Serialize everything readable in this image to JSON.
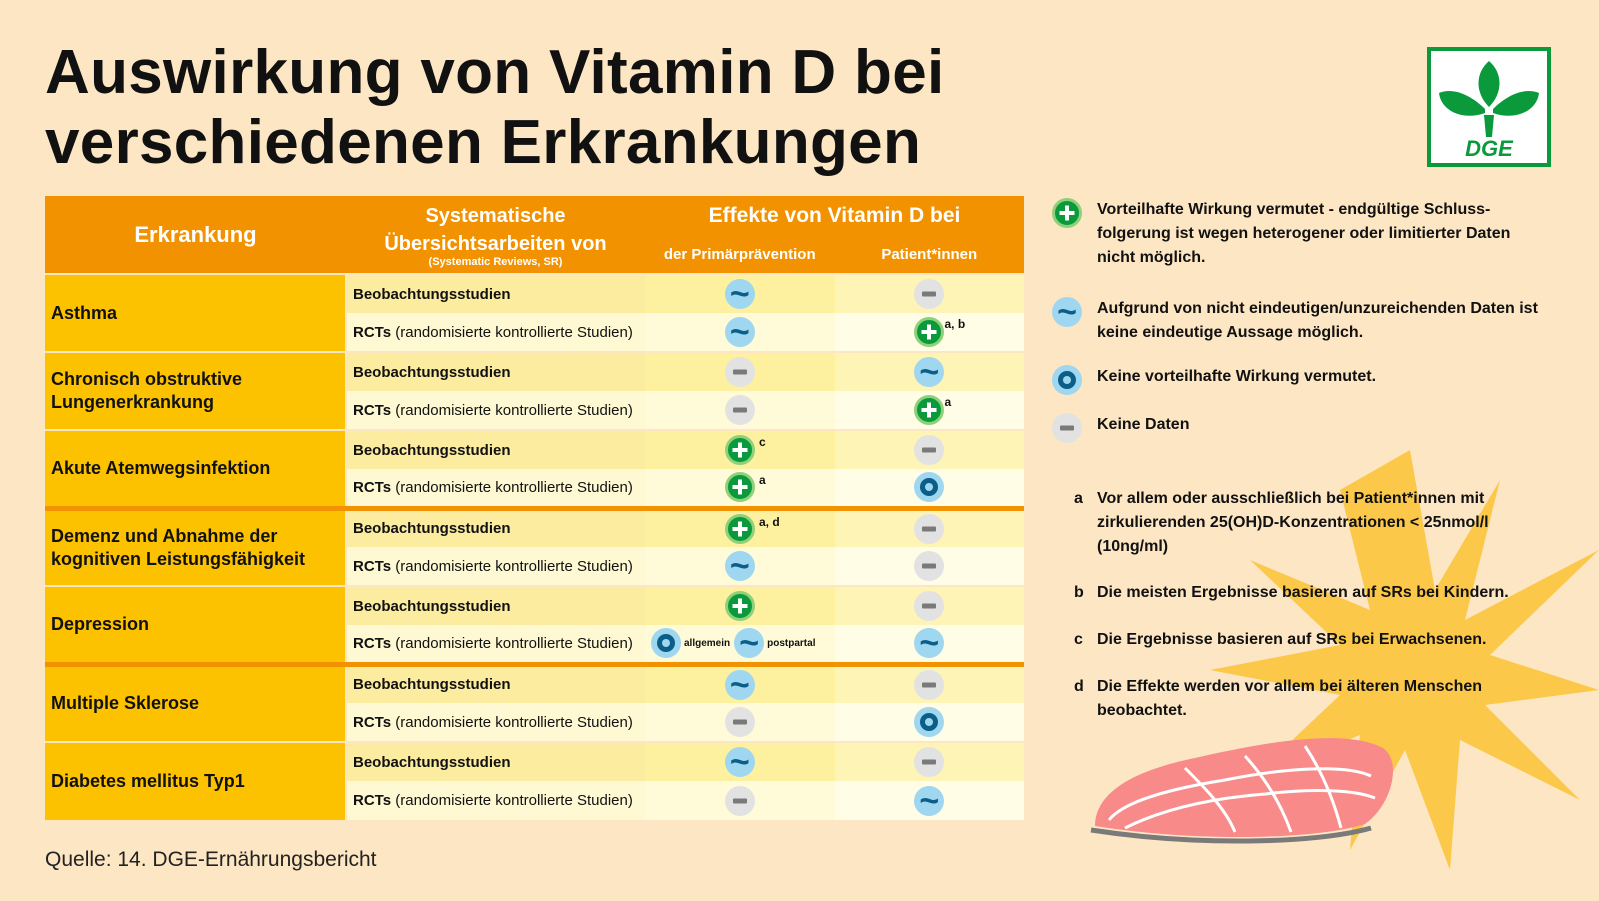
{
  "title_line1": "Auswirkung von Vitamin D bei",
  "title_line2": "verschiedenen Erkrankungen",
  "logo_text": "DGE",
  "colors": {
    "header": "#f39200",
    "disease": "#fcc200",
    "green": "#0a9a3c",
    "blue": "#9fd6f0",
    "background": "#fde6c3"
  },
  "table": {
    "h_erkrankung": "Erkrankung",
    "h_sys": "Systematische",
    "h_sys2": "Übersichtsarbeiten von",
    "h_sys_small": "(Systematic Reviews, SR)",
    "h_effekte": "Effekte von Vitamin D bei",
    "h_primary": "der Primärprävention",
    "h_patients": "Patient*innen",
    "obs_label": "Beobachtungsstudien",
    "rct_bold": "RCTs",
    "rct_rest": " (randomisierte kontrollierte Studien)",
    "rows": [
      {
        "disease": "Asthma",
        "obs": {
          "prim": "tilde",
          "pat": "minus"
        },
        "rct": {
          "prim": "tilde",
          "pat": "plus",
          "pat_note": "a, b"
        }
      },
      {
        "disease": "Chronisch obstruktive Lungenerkrankung",
        "obs": {
          "prim": "minus",
          "pat": "tilde"
        },
        "rct": {
          "prim": "minus",
          "pat": "plus",
          "pat_note": "a"
        }
      },
      {
        "disease": "Akute Atemwegsinfektion",
        "obs": {
          "prim": "plus",
          "prim_note": "c",
          "pat": "minus"
        },
        "rct": {
          "prim": "plus",
          "prim_note": "a",
          "pat": "circle"
        }
      },
      {
        "disease": "Demenz und Abnahme der kognitiven Leistungsfähigkeit",
        "obs": {
          "prim": "plus",
          "prim_note": "a, d",
          "pat": "minus"
        },
        "rct": {
          "prim": "tilde",
          "pat": "minus"
        }
      },
      {
        "disease": "Depression",
        "obs": {
          "prim": "plus",
          "pat": "minus"
        },
        "rct": {
          "prim": "circle+tilde",
          "prim_label1": "allgemein",
          "prim_label2": "postpartal",
          "pat": "tilde"
        }
      },
      {
        "disease": "Multiple Sklerose",
        "obs": {
          "prim": "tilde",
          "pat": "minus"
        },
        "rct": {
          "prim": "minus",
          "pat": "circle"
        }
      },
      {
        "disease": "Diabetes mellitus Typ1",
        "obs": {
          "prim": "tilde",
          "pat": "minus"
        },
        "rct": {
          "prim": "minus",
          "pat": "tilde"
        }
      }
    ]
  },
  "legend": {
    "plus": "Vorteilhafte Wirkung vermutet - endgültige Schluss-folgerung ist wegen heterogener oder limitierter Daten nicht möglich.",
    "tilde": "Aufgrund von nicht eindeutigen/unzureichenden Daten ist keine eindeutige Aussage möglich.",
    "circle": "Keine vorteilhafte Wirkung vermutet.",
    "minus": "Keine Daten"
  },
  "notes": [
    {
      "key": "a",
      "text": "Vor allem oder ausschließlich bei Patient*innen mit zirkulierenden 25(OH)D-Konzentrationen < 25nmol/l (10ng/ml)"
    },
    {
      "key": "b",
      "text": "Die meisten Ergebnisse basieren auf SRs bei Kindern."
    },
    {
      "key": "c",
      "text": "Die Ergebnisse basieren auf SRs bei Erwachsenen."
    },
    {
      "key": "d",
      "text": "Die Effekte werden vor allem bei älteren Menschen beobachtet."
    }
  ],
  "source": "Quelle: 14. DGE-Ernährungsbericht"
}
